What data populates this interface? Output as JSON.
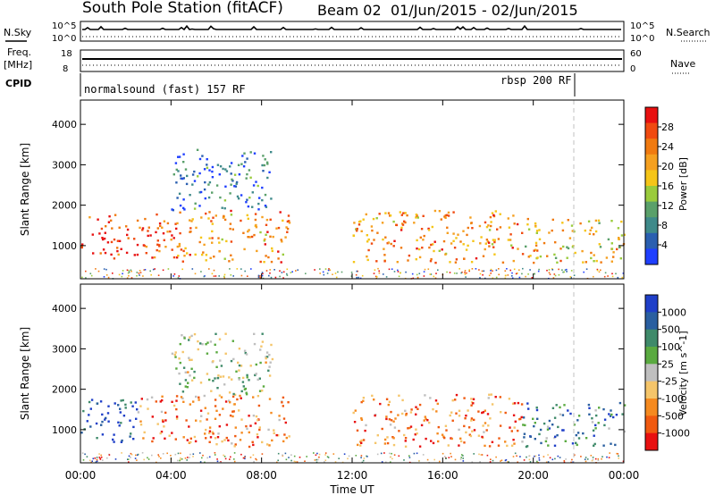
{
  "title": "South Pole Station (fitACF)",
  "beam": "Beam 02",
  "date_range": "01/Jun/2015 - 02/Jun/2015",
  "header_panel": {
    "left_label": "N.Sky",
    "right_label": "N.Search",
    "left_ticks": [
      "10^5",
      "10^0"
    ],
    "right_ticks": [
      "10^5",
      "10^0"
    ]
  },
  "freq_panel": {
    "left_label_1": "Freq.",
    "left_label_2": "[MHz]",
    "right_label": "Nave",
    "left_ticks": [
      "18",
      "8"
    ],
    "right_ticks": [
      "60",
      "0"
    ]
  },
  "cpid": {
    "label": "CPID",
    "segments": [
      {
        "text": "normalsound (fast) 157 RF",
        "start_hour": 0
      },
      {
        "text": "rbsp 200 RF",
        "start_hour": 22
      }
    ]
  },
  "chart_data": [
    {
      "type": "heatmap",
      "name": "Power",
      "xlabel": "Time UT",
      "ylabel": "Slant Range [km]",
      "x_ticks": [
        "00:00",
        "04:00",
        "08:00",
        "12:00",
        "16:00",
        "20:00",
        "00:00"
      ],
      "y_ticks": [
        1000,
        2000,
        3000,
        4000
      ],
      "xlim_hours": [
        0,
        24
      ],
      "ylim_km": [
        180,
        4600
      ],
      "colorbar": {
        "label": "Power [dB]",
        "ticks": [
          "4",
          "8",
          "12",
          "16",
          "20",
          "24",
          "28"
        ],
        "colors": [
          "#1f3fff",
          "#2a5fb0",
          "#3f8a8a",
          "#5aa06a",
          "#9acb3c",
          "#f5c518",
          "#f5a020",
          "#f07a10",
          "#f04a10",
          "#e81010"
        ]
      },
      "scatter_regions": [
        {
          "t0": 0.0,
          "t1": 4.2,
          "r0": 700,
          "r1": 1800,
          "level": 0.85
        },
        {
          "t0": 4.2,
          "t1": 9.2,
          "r0": 600,
          "r1": 1900,
          "level": 0.7
        },
        {
          "t0": 4.0,
          "t1": 8.5,
          "r0": 1900,
          "r1": 3400,
          "level": 0.2
        },
        {
          "t0": 12.0,
          "t1": 19.5,
          "r0": 600,
          "r1": 1900,
          "level": 0.7
        },
        {
          "t0": 19.5,
          "t1": 24.0,
          "r0": 600,
          "r1": 1700,
          "level": 0.6
        }
      ]
    },
    {
      "type": "heatmap",
      "name": "Velocity",
      "xlabel": "Time UT",
      "ylabel": "Slant Range [km]",
      "x_ticks": [
        "00:00",
        "04:00",
        "08:00",
        "12:00",
        "16:00",
        "20:00",
        "00:00"
      ],
      "y_ticks": [
        1000,
        2000,
        3000,
        4000
      ],
      "xlim_hours": [
        0,
        24
      ],
      "ylim_km": [
        180,
        4600
      ],
      "colorbar": {
        "label": "Velocity [m s^-1]",
        "ticks": [
          "1000",
          "500",
          "100",
          "25",
          "-25",
          "-100",
          "-500",
          "-1000"
        ],
        "colors": [
          "#1f3fc8",
          "#2a5fa0",
          "#3f8a6a",
          "#5aaa40",
          "#bfbfbf",
          "#f5c56a",
          "#f58a20",
          "#f05a10",
          "#e81010"
        ]
      },
      "scatter_regions": [
        {
          "t0": 0.0,
          "t1": 2.5,
          "r0": 700,
          "r1": 1800,
          "level": 0.1
        },
        {
          "t0": 2.5,
          "t1": 9.2,
          "r0": 600,
          "r1": 1900,
          "level": 0.75
        },
        {
          "t0": 4.0,
          "t1": 8.5,
          "r0": 1900,
          "r1": 3400,
          "level": 0.45
        },
        {
          "t0": 12.0,
          "t1": 19.5,
          "r0": 600,
          "r1": 1900,
          "level": 0.75
        },
        {
          "t0": 19.5,
          "t1": 24.0,
          "r0": 600,
          "r1": 1700,
          "level": 0.25
        }
      ]
    }
  ]
}
